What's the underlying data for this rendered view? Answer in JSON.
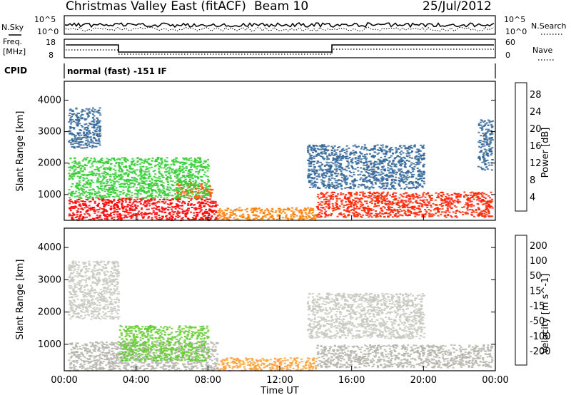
{
  "header": {
    "station": "Christmas Valley East (fitACF)",
    "beam": "Beam 10",
    "date": "25/Jul/2012"
  },
  "strip_labels": {
    "nsky": "N.Sky",
    "nsky_ticks": [
      "10^5",
      "10^0"
    ],
    "nsearch": "N.Search",
    "freq": "Freq.",
    "freq_unit": "[MHz]",
    "freq_ticks": [
      "18",
      "8"
    ],
    "nave": "Nave",
    "nave_ticks": [
      "60",
      "0"
    ],
    "cpid": "CPID",
    "cpid_value": "normal (fast) -151 IF"
  },
  "axes": {
    "time_ticks": [
      "00:00",
      "04:00",
      "08:00",
      "12:00",
      "16:00",
      "20:00",
      "00:00"
    ],
    "xlabel": "Time UT",
    "range_ticks": [
      "1000",
      "2000",
      "3000",
      "4000"
    ],
    "ylabel": "Slant Range [km]"
  },
  "colorbars": {
    "power": {
      "label": "Power [dB]",
      "ticks": [
        "4",
        "8",
        "12",
        "16",
        "20",
        "24",
        "28"
      ],
      "colors": [
        "#0000ff",
        "#2040c0",
        "#336699",
        "#2e8b57",
        "#32cd32",
        "#7fcf3f",
        "#c8d400",
        "#ffcc00",
        "#ffa500",
        "#ff7f00",
        "#ff5500",
        "#ff2200",
        "#ff0000"
      ]
    },
    "velocity": {
      "label": "Velocity [m s^-1]",
      "ticks": [
        "200",
        "100",
        "50",
        "15",
        "-15",
        "-50",
        "-100",
        "-200"
      ],
      "colors": [
        "#2233aa",
        "#2e6e8e",
        "#2e8b57",
        "#66cc33",
        "#c8c8c0",
        "#ffa033",
        "#ff7f00",
        "#ff3300",
        "#ff0000"
      ]
    }
  },
  "colors": {
    "ground_scatter": "#b4b4aa",
    "panel_border": "#000000"
  },
  "chart_data": [
    {
      "type": "heatmap",
      "title": "Power [dB]",
      "xlabel": "Time UT",
      "ylabel": "Slant Range [km]",
      "xlim": [
        "00:00",
        "24:00"
      ],
      "ylim": [
        180,
        4600
      ],
      "clim": [
        0,
        30
      ],
      "regions": [
        {
          "t0": 0.2,
          "t1": 8.5,
          "r0": 200,
          "r1": 900,
          "value": 28
        },
        {
          "t0": 6.2,
          "t1": 8.2,
          "r0": 900,
          "r1": 1400,
          "value": 24
        },
        {
          "t0": 0.2,
          "t1": 8.0,
          "r0": 900,
          "r1": 2200,
          "value": 10
        },
        {
          "t0": 8.5,
          "t1": 14.0,
          "r0": 200,
          "r1": 600,
          "value": 22
        },
        {
          "t0": 14.0,
          "t1": 23.8,
          "r0": 300,
          "r1": 1100,
          "value": 26
        },
        {
          "t0": 13.5,
          "t1": 20.0,
          "r0": 1200,
          "r1": 2600,
          "value": 6
        },
        {
          "t0": 0.2,
          "t1": 2.0,
          "r0": 2500,
          "r1": 3800,
          "value": 6
        },
        {
          "t0": 23.0,
          "t1": 23.8,
          "r0": 1800,
          "r1": 3400,
          "value": 6
        }
      ]
    },
    {
      "type": "heatmap",
      "title": "Velocity [m s^-1]",
      "xlabel": "Time UT",
      "ylabel": "Slant Range [km]",
      "xlim": [
        "00:00",
        "24:00"
      ],
      "ylim": [
        180,
        4600
      ],
      "clim": [
        -200,
        200
      ],
      "regions": [
        {
          "t0": 0.2,
          "t1": 8.5,
          "r0": 200,
          "r1": 1100,
          "value": 0,
          "ground_scatter": true
        },
        {
          "t0": 3.0,
          "t1": 8.0,
          "r0": 500,
          "r1": 1600,
          "value": 45
        },
        {
          "t0": 8.5,
          "t1": 14.0,
          "r0": 200,
          "r1": 600,
          "value": -30
        },
        {
          "t0": 14.0,
          "t1": 23.8,
          "r0": 300,
          "r1": 1000,
          "value": 0,
          "ground_scatter": true
        },
        {
          "t0": 13.5,
          "t1": 20.0,
          "r0": 1200,
          "r1": 2600,
          "value": 0
        },
        {
          "t0": 0.2,
          "t1": 3.0,
          "r0": 1800,
          "r1": 3600,
          "value": 0
        }
      ]
    }
  ]
}
